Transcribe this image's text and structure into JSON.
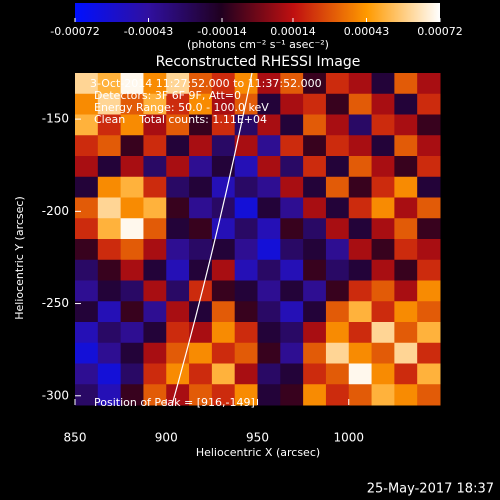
{
  "chart_data": {
    "type": "heatmap",
    "title": "Reconstructed RHESSI Image",
    "colorbar_label": "(photons cm⁻² s⁻¹ asec⁻²)",
    "zlim": [
      -0.00072,
      0.00072
    ],
    "zticks": [
      -0.00072,
      -0.00043,
      -0.00014,
      0.00014,
      0.00043,
      0.00072
    ],
    "colorscale": [
      "#0010ff",
      "#3010a0",
      "#200020",
      "#c01010",
      "#ff9a00",
      "#ffffff"
    ],
    "x_label": "Heliocentric X (arcsec)",
    "y_label": "Heliocentric Y (arcsec)",
    "xlim": [
      850,
      1050
    ],
    "ylim": [
      -305,
      -125
    ],
    "xticks": [
      850,
      900,
      950,
      1000
    ],
    "yticks": [
      -150,
      -200,
      -250,
      -300
    ],
    "annotations": [
      "3-Oct-2014 11:27:52.000 to 11:37:52.000",
      "Detectors: 3F 6F 9F, Att=0",
      "Energy Range: 50.0 - 100.0 keV",
      "Clean    Total counts: 1.11E+04"
    ],
    "peak_label": "Position of Peak = [916,-149]",
    "footer": "25-May-2017 18:37",
    "z": [
      [
        0.0006,
        0.0005,
        0.0007,
        0.0004,
        0.0006,
        0.0003,
        0.0002,
        0.0004,
        0.0001,
        0.0003,
        -0.0001,
        0.0002,
        0.0001,
        -0.0002,
        0.0003,
        0.0001
      ],
      [
        0.0004,
        0.0006,
        0.0003,
        0.0005,
        0.0002,
        0.0004,
        0.0001,
        0.0003,
        -0.0002,
        0.0001,
        0.0002,
        -0.0001,
        0.0003,
        0.0001,
        -0.0002,
        0.0002
      ],
      [
        0.0005,
        0.0002,
        0.0004,
        0.0001,
        0.0003,
        -0.0001,
        0.0002,
        -0.0003,
        0.0001,
        -0.0002,
        0.0003,
        0.0001,
        -0.0003,
        0.0002,
        0.0001,
        -0.0001
      ],
      [
        0.0002,
        0.0003,
        -0.0001,
        0.0002,
        -0.0002,
        0.0001,
        -0.0003,
        0.0001,
        -0.0004,
        0.0002,
        -0.0001,
        0.0002,
        0.0001,
        -0.0002,
        0.0003,
        0.0001
      ],
      [
        0.0001,
        -0.0002,
        0.0001,
        -0.0003,
        0.0001,
        -0.0004,
        -0.0002,
        -0.0005,
        0.0001,
        -0.0003,
        0.0002,
        -0.0002,
        0.0003,
        0.0001,
        -0.0001,
        0.0002
      ],
      [
        -0.0002,
        0.0004,
        0.0005,
        0.0002,
        -0.0003,
        -0.0002,
        -0.0005,
        -0.0003,
        -0.0004,
        0.0001,
        -0.0002,
        0.0003,
        -0.0001,
        0.0002,
        0.0004,
        -0.0002
      ],
      [
        0.0003,
        0.0006,
        0.0004,
        0.0005,
        -0.0001,
        -0.0004,
        -0.0003,
        -0.0006,
        -0.0002,
        -0.0004,
        0.0001,
        -0.0002,
        0.0002,
        0.0004,
        0.0001,
        0.0003
      ],
      [
        0.0002,
        0.0005,
        0.0007,
        0.0003,
        -0.0002,
        -0.0001,
        -0.0005,
        -0.0003,
        -0.0005,
        -0.0001,
        -0.0003,
        0.0001,
        -0.0002,
        0.0001,
        0.0003,
        -0.0001
      ],
      [
        -0.0001,
        0.0002,
        0.0003,
        0.0001,
        -0.0004,
        -0.0003,
        -0.0002,
        -0.0004,
        -0.0006,
        -0.0003,
        -0.0002,
        -0.0004,
        0.0001,
        -0.0001,
        0.0002,
        0.0001
      ],
      [
        -0.0003,
        -0.0001,
        0.0001,
        -0.0002,
        -0.0005,
        -0.0002,
        0.0001,
        -0.0005,
        -0.0003,
        -0.0005,
        -0.0001,
        -0.0003,
        -0.0002,
        0.0001,
        -0.0001,
        0.0002
      ],
      [
        -0.0004,
        -0.0002,
        -0.0003,
        0.0001,
        -0.0003,
        0.0002,
        -0.0001,
        -0.0002,
        -0.0004,
        -0.0002,
        -0.0004,
        -0.0001,
        0.0002,
        0.0003,
        0.0001,
        0.0004
      ],
      [
        -0.0002,
        -0.0005,
        -0.0001,
        -0.0004,
        0.0001,
        -0.0002,
        0.0003,
        -0.0001,
        -0.0003,
        -0.0005,
        -0.0002,
        0.0003,
        0.0005,
        0.0002,
        0.0004,
        0.0003
      ],
      [
        -0.0005,
        -0.0003,
        -0.0004,
        -0.0002,
        0.0002,
        0.0001,
        0.0004,
        0.0002,
        -0.0002,
        -0.0003,
        0.0001,
        0.0004,
        0.0002,
        0.0006,
        0.0003,
        0.0005
      ],
      [
        -0.0006,
        -0.0004,
        -0.0002,
        0.0001,
        0.0003,
        0.0004,
        0.0002,
        0.0003,
        -0.0001,
        -0.0004,
        0.0003,
        0.0006,
        0.0004,
        0.0003,
        0.0006,
        0.0002
      ],
      [
        -0.0004,
        -0.0006,
        -0.0003,
        0.0002,
        0.0004,
        0.0002,
        0.0005,
        0.0001,
        -0.0003,
        -0.0002,
        0.0002,
        0.0003,
        0.0007,
        0.0004,
        0.0002,
        0.0005
      ],
      [
        -0.0003,
        -0.0005,
        -0.0001,
        0.0003,
        0.0001,
        0.0003,
        0.0002,
        0.0004,
        -0.0002,
        -0.0001,
        0.0004,
        0.0002,
        0.0003,
        0.0005,
        0.0004,
        0.0003
      ]
    ]
  }
}
